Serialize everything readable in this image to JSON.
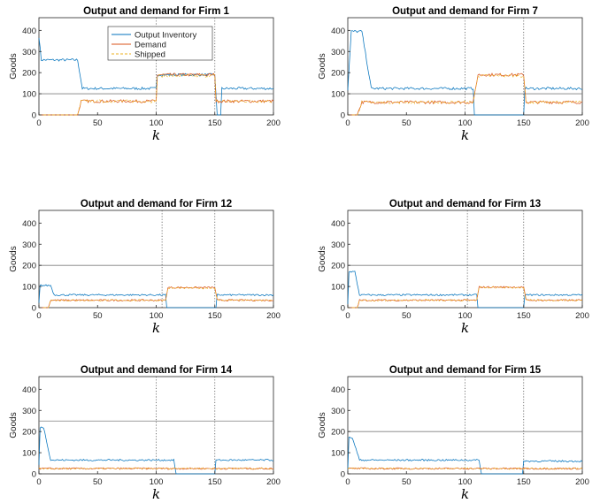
{
  "colors": {
    "inventory": "#0072BD",
    "demand": "#D95319",
    "shipped": "#EDB120",
    "threshold": "#7f7f7f"
  },
  "legend": {
    "placement": "top-center",
    "panel": 0,
    "entries": [
      "Output Inventory",
      "Demand",
      "Shipped"
    ]
  },
  "chart_data": [
    {
      "type": "line",
      "title": "Output and demand for Firm 1",
      "xlabel": "k",
      "ylabel": "Goods",
      "xlim": [
        0,
        200
      ],
      "ylim": [
        0,
        460
      ],
      "xticks": [
        0,
        50,
        100,
        150,
        200
      ],
      "yticks": [
        0,
        100,
        200,
        300,
        400
      ],
      "grid": false,
      "threshold": 100,
      "vlines": [
        100,
        150
      ],
      "series": [
        {
          "name": "Output Inventory",
          "points": [
            [
              0,
              370
            ],
            [
              2,
              260
            ],
            [
              33,
              260
            ],
            [
              37,
              125
            ],
            [
              100,
              125
            ],
            [
              101,
              190
            ],
            [
              150,
              190
            ],
            [
              152,
              0
            ],
            [
              155,
              0
            ],
            [
              156,
              125
            ],
            [
              200,
              125
            ]
          ],
          "noise": 6
        },
        {
          "name": "Demand",
          "points": [
            [
              0,
              0
            ],
            [
              33,
              0
            ],
            [
              36,
              65
            ],
            [
              100,
              65
            ],
            [
              101,
              190
            ],
            [
              150,
              190
            ],
            [
              151,
              65
            ],
            [
              200,
              65
            ]
          ],
          "noise": 7
        },
        {
          "name": "Shipped",
          "points": [
            [
              0,
              0
            ],
            [
              33,
              0
            ],
            [
              36,
              65
            ],
            [
              100,
              65
            ],
            [
              101,
              185
            ],
            [
              150,
              185
            ],
            [
              151,
              65
            ],
            [
              200,
              65
            ]
          ],
          "noise": 7
        }
      ]
    },
    {
      "type": "line",
      "title": "Output and demand for Firm 7",
      "xlabel": "k",
      "ylabel": "Goods",
      "xlim": [
        0,
        200
      ],
      "ylim": [
        0,
        460
      ],
      "xticks": [
        0,
        50,
        100,
        150,
        200
      ],
      "yticks": [
        0,
        100,
        200,
        300,
        400
      ],
      "grid": false,
      "threshold": 100,
      "vlines": [
        100,
        150
      ],
      "series": [
        {
          "name": "Output Inventory",
          "points": [
            [
              0,
              120
            ],
            [
              3,
              395
            ],
            [
              12,
              395
            ],
            [
              20,
              125
            ],
            [
              107,
              125
            ],
            [
              108,
              0
            ],
            [
              150,
              0
            ],
            [
              151,
              125
            ],
            [
              200,
              125
            ]
          ],
          "noise": 6
        },
        {
          "name": "Demand",
          "points": [
            [
              0,
              0
            ],
            [
              8,
              0
            ],
            [
              12,
              60
            ],
            [
              107,
              60
            ],
            [
              111,
              190
            ],
            [
              150,
              190
            ],
            [
              152,
              60
            ],
            [
              200,
              60
            ]
          ],
          "noise": 7
        },
        {
          "name": "Shipped",
          "points": [
            [
              0,
              0
            ],
            [
              8,
              0
            ],
            [
              12,
              60
            ],
            [
              107,
              60
            ],
            [
              111,
              185
            ],
            [
              150,
              185
            ],
            [
              152,
              60
            ],
            [
              200,
              60
            ]
          ],
          "noise": 7
        }
      ]
    },
    {
      "type": "line",
      "title": "Output and demand for Firm 12",
      "xlabel": "k",
      "ylabel": "Goods",
      "xlim": [
        0,
        200
      ],
      "ylim": [
        0,
        460
      ],
      "xticks": [
        0,
        50,
        100,
        150,
        200
      ],
      "yticks": [
        0,
        100,
        200,
        300,
        400
      ],
      "grid": false,
      "threshold": 200,
      "vlines": [
        105,
        150
      ],
      "series": [
        {
          "name": "Output Inventory",
          "points": [
            [
              0,
              20
            ],
            [
              1,
              105
            ],
            [
              10,
              105
            ],
            [
              13,
              60
            ],
            [
              108,
              60
            ],
            [
              109,
              0
            ],
            [
              151,
              0
            ],
            [
              152,
              60
            ],
            [
              200,
              60
            ]
          ],
          "noise": 4
        },
        {
          "name": "Demand",
          "points": [
            [
              0,
              0
            ],
            [
              8,
              0
            ],
            [
              10,
              35
            ],
            [
              108,
              35
            ],
            [
              110,
              95
            ],
            [
              150,
              95
            ],
            [
              152,
              35
            ],
            [
              200,
              35
            ]
          ],
          "noise": 4
        },
        {
          "name": "Shipped",
          "points": [
            [
              0,
              0
            ],
            [
              8,
              0
            ],
            [
              10,
              35
            ],
            [
              108,
              35
            ],
            [
              110,
              92
            ],
            [
              150,
              92
            ],
            [
              152,
              35
            ],
            [
              200,
              35
            ]
          ],
          "noise": 4
        }
      ]
    },
    {
      "type": "line",
      "title": "Output and demand for Firm 13",
      "xlabel": "k",
      "ylabel": "Goods",
      "xlim": [
        0,
        200
      ],
      "ylim": [
        0,
        460
      ],
      "xticks": [
        0,
        50,
        100,
        150,
        200
      ],
      "yticks": [
        0,
        100,
        200,
        300,
        400
      ],
      "grid": false,
      "threshold": 200,
      "vlines": [
        102,
        150
      ],
      "series": [
        {
          "name": "Output Inventory",
          "points": [
            [
              0,
              20
            ],
            [
              1,
              170
            ],
            [
              6,
              170
            ],
            [
              10,
              60
            ],
            [
              110,
              60
            ],
            [
              111,
              0
            ],
            [
              150,
              0
            ],
            [
              151,
              60
            ],
            [
              200,
              60
            ]
          ],
          "noise": 4
        },
        {
          "name": "Demand",
          "points": [
            [
              0,
              0
            ],
            [
              8,
              0
            ],
            [
              10,
              35
            ],
            [
              110,
              35
            ],
            [
              112,
              97
            ],
            [
              150,
              97
            ],
            [
              152,
              35
            ],
            [
              200,
              35
            ]
          ],
          "noise": 4
        },
        {
          "name": "Shipped",
          "points": [
            [
              0,
              0
            ],
            [
              8,
              0
            ],
            [
              10,
              35
            ],
            [
              110,
              35
            ],
            [
              112,
              95
            ],
            [
              150,
              95
            ],
            [
              152,
              35
            ],
            [
              200,
              35
            ]
          ],
          "noise": 4
        }
      ]
    },
    {
      "type": "line",
      "title": "Output and demand for Firm 14",
      "xlabel": "k",
      "ylabel": "Goods",
      "xlim": [
        0,
        200
      ],
      "ylim": [
        0,
        460
      ],
      "xticks": [
        0,
        50,
        100,
        150,
        200
      ],
      "yticks": [
        0,
        100,
        200,
        300,
        400
      ],
      "grid": false,
      "threshold": 250,
      "vlines": [
        100,
        150
      ],
      "series": [
        {
          "name": "Output Inventory",
          "points": [
            [
              0,
              40
            ],
            [
              1,
              220
            ],
            [
              4,
              220
            ],
            [
              10,
              65
            ],
            [
              115,
              65
            ],
            [
              117,
              0
            ],
            [
              150,
              0
            ],
            [
              151,
              65
            ],
            [
              200,
              65
            ]
          ],
          "noise": 4
        },
        {
          "name": "Demand",
          "points": [
            [
              0,
              25
            ],
            [
              200,
              25
            ]
          ],
          "noise": 4
        },
        {
          "name": "Shipped",
          "points": [
            [
              0,
              25
            ],
            [
              200,
              25
            ]
          ],
          "noise": 4
        }
      ]
    },
    {
      "type": "line",
      "title": "Output and demand for Firm 15",
      "xlabel": "k",
      "ylabel": "Goods",
      "xlim": [
        0,
        200
      ],
      "ylim": [
        0,
        460
      ],
      "xticks": [
        0,
        50,
        100,
        150,
        200
      ],
      "yticks": [
        0,
        100,
        200,
        300,
        400
      ],
      "grid": false,
      "threshold": 200,
      "vlines": [
        100,
        150
      ],
      "series": [
        {
          "name": "Output Inventory",
          "points": [
            [
              0,
              20
            ],
            [
              1,
              170
            ],
            [
              4,
              170
            ],
            [
              10,
              65
            ],
            [
              112,
              65
            ],
            [
              114,
              0
            ],
            [
              149,
              0
            ],
            [
              150,
              60
            ],
            [
              200,
              60
            ]
          ],
          "noise": 4
        },
        {
          "name": "Demand",
          "points": [
            [
              0,
              25
            ],
            [
              200,
              25
            ]
          ],
          "noise": 4
        },
        {
          "name": "Shipped",
          "points": [
            [
              0,
              25
            ],
            [
              200,
              25
            ]
          ],
          "noise": 4
        }
      ]
    }
  ]
}
